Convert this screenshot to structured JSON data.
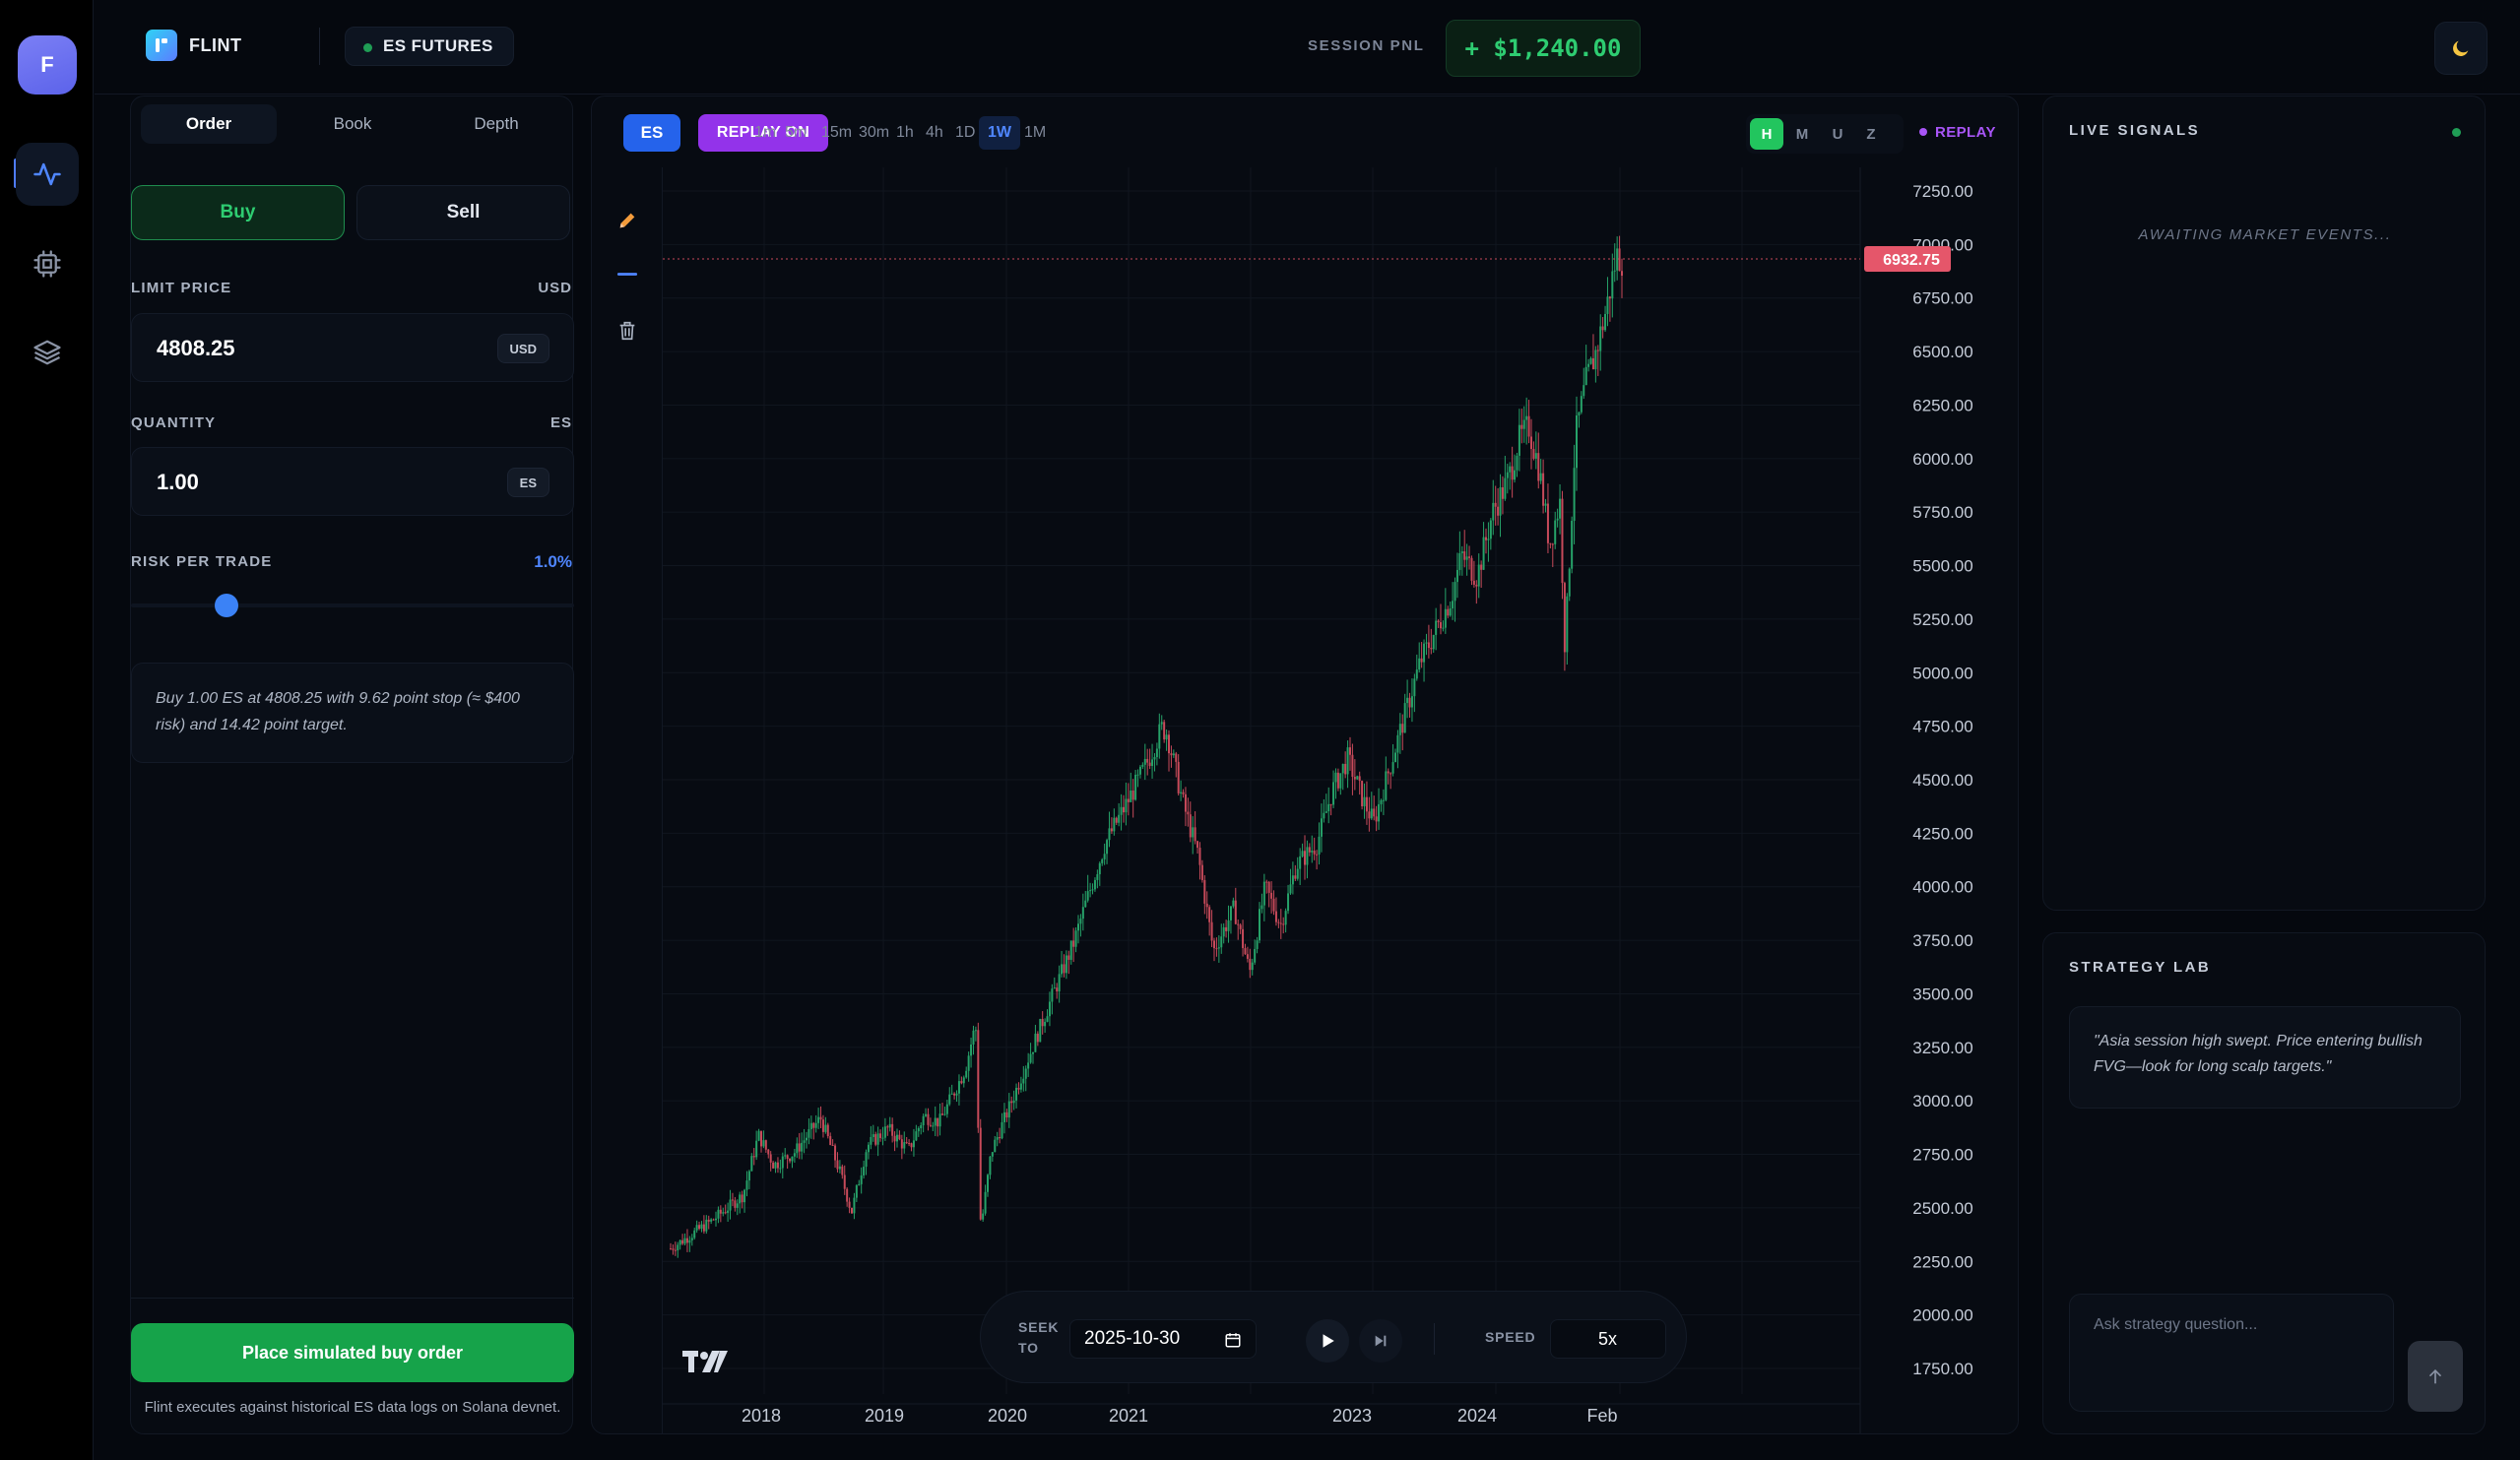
{
  "rail": {
    "avatar_initial": "F",
    "items": [
      {
        "icon": "activity-icon",
        "active": true
      },
      {
        "icon": "cpu-icon",
        "active": false
      },
      {
        "icon": "layers-icon",
        "active": false
      }
    ]
  },
  "header": {
    "app_name": "FLINT",
    "market": "ES FUTURES",
    "session_pnl_label": "SESSION PNL",
    "session_pnl_value": "+ $1,240.00",
    "theme_icon": "moon-icon"
  },
  "order": {
    "tabs": [
      "Order",
      "Book",
      "Depth"
    ],
    "active_tab": "Order",
    "buy_label": "Buy",
    "sell_label": "Sell",
    "limit_price_label": "LIMIT PRICE",
    "limit_price_unit": "USD",
    "limit_price_value": "4808.25",
    "limit_price_chip": "USD",
    "quantity_label": "QUANTITY",
    "quantity_unit": "ES",
    "quantity_value": "1.00",
    "quantity_chip": "ES",
    "risk_label": "RISK PER TRADE",
    "risk_value": "1.0%",
    "risk_fraction": 0.25,
    "summary": "Buy 1.00 ES at 4808.25 with 9.62 point stop (≈ $400 risk) and 14.42 point target.",
    "place_button": "Place simulated buy order",
    "footnote": "Flint executes against historical ES data logs on Solana devnet."
  },
  "chart_toolbar": {
    "symbol": "ES",
    "replay_button": "REPLAY ON",
    "timeframes": [
      "1m",
      "5m",
      "15m",
      "30m",
      "1h",
      "4h",
      "1D",
      "1W",
      "1M"
    ],
    "active_timeframe": "1W",
    "contract_months": [
      "H",
      "M",
      "U",
      "Z"
    ],
    "active_month": "H",
    "replay_tag": "REPLAY"
  },
  "chart_tools": [
    "pencil-icon",
    "horizontal-line-icon",
    "trash-icon"
  ],
  "chart_data": {
    "type": "candlestick",
    "y_ticks": [
      "7250.00",
      "7000.00",
      "6750.00",
      "6500.00",
      "6250.00",
      "6000.00",
      "5750.00",
      "5500.00",
      "5250.00",
      "5000.00",
      "4750.00",
      "4500.00",
      "4250.00",
      "4000.00",
      "3750.00",
      "3500.00",
      "3250.00",
      "3000.00",
      "2750.00",
      "2500.00",
      "2250.00",
      "2000.00",
      "1750.00"
    ],
    "ylim": [
      1750,
      7250
    ],
    "x_ticks": [
      "2018",
      "2019",
      "2020",
      "2021",
      "2023",
      "2024",
      "Feb"
    ],
    "last_price": "6932.75",
    "last_price_value": 6932.75,
    "up_color": "#26a269",
    "down_color": "#c74a5a",
    "series_path": [
      [
        0,
        2310
      ],
      [
        0.04,
        2440
      ],
      [
        0.07,
        2560
      ],
      [
        0.085,
        2840
      ],
      [
        0.1,
        2700
      ],
      [
        0.12,
        2760
      ],
      [
        0.145,
        2920
      ],
      [
        0.165,
        2650
      ],
      [
        0.175,
        2480
      ],
      [
        0.19,
        2790
      ],
      [
        0.21,
        2870
      ],
      [
        0.23,
        2770
      ],
      [
        0.245,
        2930
      ],
      [
        0.26,
        2900
      ],
      [
        0.285,
        3150
      ],
      [
        0.295,
        3360
      ],
      [
        0.3,
        2400
      ],
      [
        0.31,
        2760
      ],
      [
        0.33,
        3000
      ],
      [
        0.35,
        3250
      ],
      [
        0.37,
        3500
      ],
      [
        0.39,
        3740
      ],
      [
        0.4,
        3900
      ],
      [
        0.42,
        4200
      ],
      [
        0.44,
        4380
      ],
      [
        0.46,
        4570
      ],
      [
        0.475,
        4740
      ],
      [
        0.48,
        4720
      ],
      [
        0.495,
        4400
      ],
      [
        0.51,
        4150
      ],
      [
        0.525,
        3700
      ],
      [
        0.545,
        3900
      ],
      [
        0.56,
        3600
      ],
      [
        0.575,
        4000
      ],
      [
        0.59,
        3820
      ],
      [
        0.605,
        4100
      ],
      [
        0.625,
        4200
      ],
      [
        0.64,
        4450
      ],
      [
        0.655,
        4600
      ],
      [
        0.67,
        4400
      ],
      [
        0.68,
        4300
      ],
      [
        0.695,
        4550
      ],
      [
        0.71,
        4800
      ],
      [
        0.725,
        5050
      ],
      [
        0.74,
        5200
      ],
      [
        0.755,
        5350
      ],
      [
        0.765,
        5550
      ],
      [
        0.78,
        5450
      ],
      [
        0.795,
        5750
      ],
      [
        0.81,
        5900
      ],
      [
        0.82,
        6080
      ],
      [
        0.83,
        6150
      ],
      [
        0.84,
        5950
      ],
      [
        0.85,
        5600
      ],
      [
        0.86,
        5800
      ],
      [
        0.865,
        5100
      ],
      [
        0.875,
        6100
      ],
      [
        0.885,
        6350
      ],
      [
        0.895,
        6500
      ],
      [
        0.905,
        6700
      ],
      [
        0.915,
        6950
      ],
      [
        0.92,
        6932.75
      ]
    ]
  },
  "seek": {
    "label": "SEEK TO",
    "date": "2025-10-30",
    "speed_label": "SPEED",
    "speed_value": "5x"
  },
  "signals": {
    "title": "LIVE SIGNALS",
    "empty_text": "AWAITING MARKET EVENTS..."
  },
  "lab": {
    "title": "STRATEGY LAB",
    "quote": "\"Asia session high swept. Price entering bullish FVG—look for long scalp targets.\"",
    "ask_placeholder": "Ask strategy question..."
  }
}
